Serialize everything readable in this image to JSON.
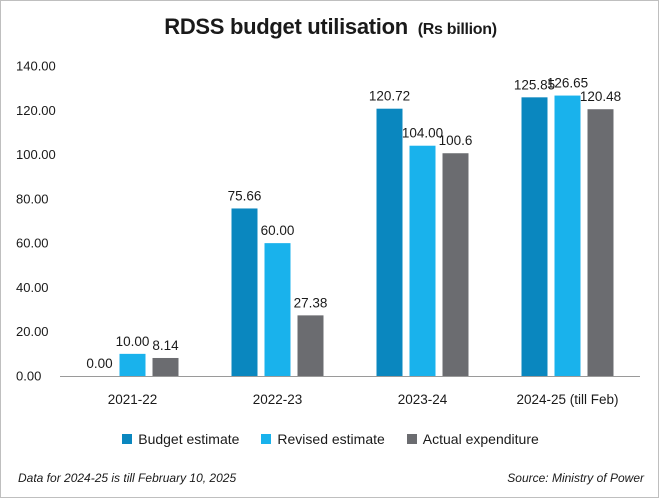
{
  "chart_data": {
    "type": "bar",
    "title": "RDSS budget utilisation",
    "unit": "(Rs billion)",
    "categories": [
      "2021-22",
      "2022-23",
      "2023-24",
      "2024-25 (till Feb)"
    ],
    "series": [
      {
        "name": "Budget estimate",
        "color": "#0a87bf",
        "values": [
          0.0,
          75.66,
          120.72,
          125.85
        ],
        "labels": [
          "0.00",
          "75.66",
          "120.72",
          "125.85"
        ]
      },
      {
        "name": "Revised estimate",
        "color": "#19b2ec",
        "values": [
          10.0,
          60.0,
          104.0,
          126.65
        ],
        "labels": [
          "10.00",
          "60.00",
          "104.00",
          "126.65"
        ]
      },
      {
        "name": "Actual expenditure",
        "color": "#6b6c70",
        "values": [
          8.14,
          27.38,
          100.6,
          120.48
        ],
        "labels": [
          "8.14",
          "27.38",
          "100.6",
          "120.48"
        ]
      }
    ],
    "yticks": [
      "0.00",
      "20.00",
      "40.00",
      "60.00",
      "80.00",
      "100.00",
      "120.00",
      "140.00"
    ],
    "ylim": [
      0,
      140
    ],
    "xlabel": "",
    "ylabel": "",
    "legend_position": "bottom"
  },
  "footnote": "Data for 2024-25 is till February 10, 2025",
  "source": "Source: Ministry of Power"
}
